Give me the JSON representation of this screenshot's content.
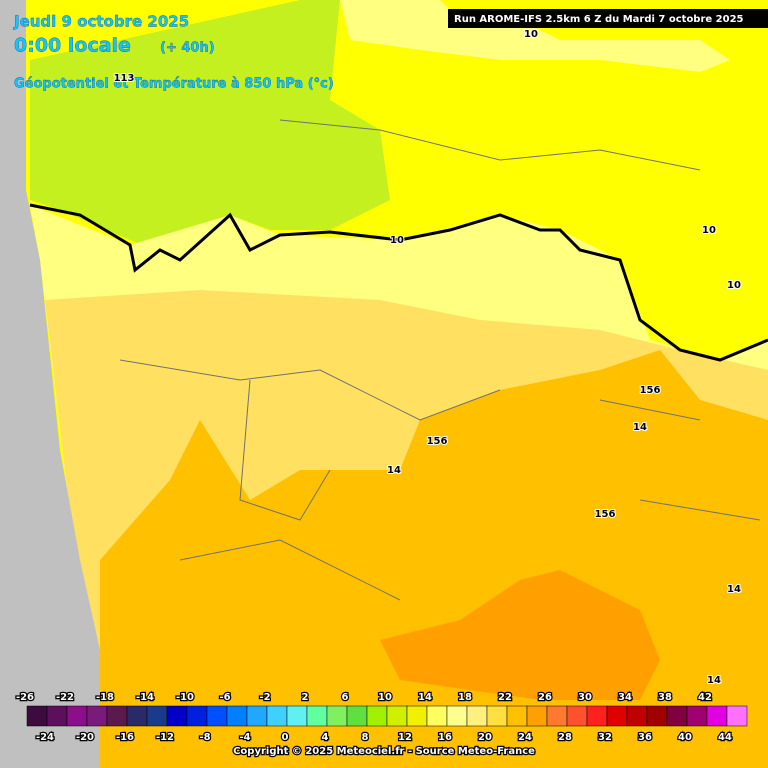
{
  "header": {
    "date": "Jeudi 9 octobre 2025",
    "time": "0:00 locale",
    "lead": "(+ 40h)",
    "field": "Géopotentiel et Température à 850 hPa (°c)",
    "run": "Run AROME-IFS 2.5km 6 Z du Mardi 7 octobre 2025"
  },
  "map": {
    "contour_labels": [
      113,
      10,
      10,
      10,
      10,
      156,
      156,
      156,
      14,
      14,
      14,
      14
    ]
  },
  "legend": {
    "top_labels": [
      -26,
      -22,
      -18,
      -14,
      -10,
      -6,
      -2,
      2,
      6,
      10,
      14,
      18,
      22,
      26,
      30,
      34,
      38,
      42
    ],
    "bottom_labels": [
      -24,
      -20,
      -16,
      -12,
      -8,
      -4,
      0,
      4,
      8,
      12,
      16,
      20,
      24,
      28,
      32,
      36,
      40,
      44
    ],
    "colors": [
      "#3d0b3d",
      "#5c0f5c",
      "#8b0e8b",
      "#7a1a7a",
      "#5a1a50",
      "#2a2a6a",
      "#1a3a8c",
      "#0000c8",
      "#0020e0",
      "#0050ff",
      "#0080ff",
      "#20a8ff",
      "#40d0ff",
      "#60f0f0",
      "#60ffa0",
      "#80f060",
      "#60e040",
      "#a0f000",
      "#d0f000",
      "#f0f000",
      "#ffff60",
      "#ffff90",
      "#fff080",
      "#ffe040",
      "#ffc000",
      "#ffa000",
      "#ff7a30",
      "#ff5030",
      "#ff2020",
      "#e00000",
      "#c00000",
      "#a00000",
      "#800040",
      "#a00070",
      "#e000e0",
      "#ff70ff"
    ]
  },
  "footer": {
    "copyright": "Copyright © 2025 Meteociel.fr - Source Meteo-France"
  }
}
